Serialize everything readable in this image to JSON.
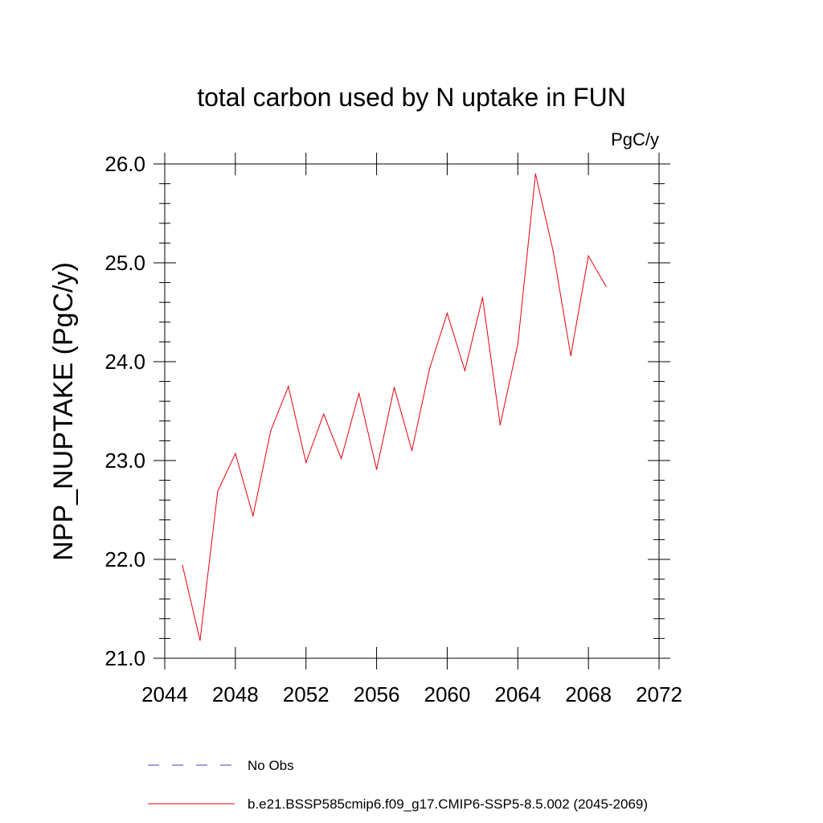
{
  "chart_data": {
    "type": "line",
    "title": "total carbon used by N uptake in FUN",
    "units": "PgC/y",
    "ylabel": "NPP_NUPTAKE  (PgC/y)",
    "xlabel": "",
    "xlim": [
      2044,
      2072
    ],
    "ylim": [
      21.0,
      26.0
    ],
    "x_ticks": [
      2044,
      2048,
      2052,
      2056,
      2060,
      2064,
      2068,
      2072
    ],
    "x_tick_labels": [
      "2044",
      "2048",
      "2052",
      "2056",
      "2060",
      "2064",
      "2068",
      "2072"
    ],
    "y_ticks": [
      21.0,
      22.0,
      23.0,
      24.0,
      25.0,
      26.0
    ],
    "y_tick_labels": [
      "21.0",
      "22.0",
      "23.0",
      "24.0",
      "25.0",
      "26.0"
    ],
    "grid": false,
    "legend_position": "bottom",
    "series": [
      {
        "name": "No Obs",
        "color": "#4a3fc0",
        "style": "dashed",
        "x": [],
        "y": []
      },
      {
        "name": "b.e21.BSSP585cmip6.f09_g17.CMIP6-SSP5-8.5.002 (2045-2069)",
        "color": "#e8000b",
        "style": "solid",
        "x": [
          2045,
          2046,
          2047,
          2048,
          2049,
          2050,
          2051,
          2052,
          2053,
          2054,
          2055,
          2056,
          2057,
          2058,
          2059,
          2060,
          2061,
          2062,
          2063,
          2064,
          2065,
          2066,
          2067,
          2068,
          2069
        ],
        "y": [
          21.94,
          21.18,
          22.69,
          23.07,
          22.44,
          23.3,
          23.75,
          22.98,
          23.47,
          23.02,
          23.68,
          22.91,
          23.74,
          23.1,
          23.93,
          24.49,
          23.91,
          24.65,
          23.36,
          24.18,
          25.9,
          25.12,
          24.06,
          25.07,
          24.76
        ]
      }
    ]
  }
}
